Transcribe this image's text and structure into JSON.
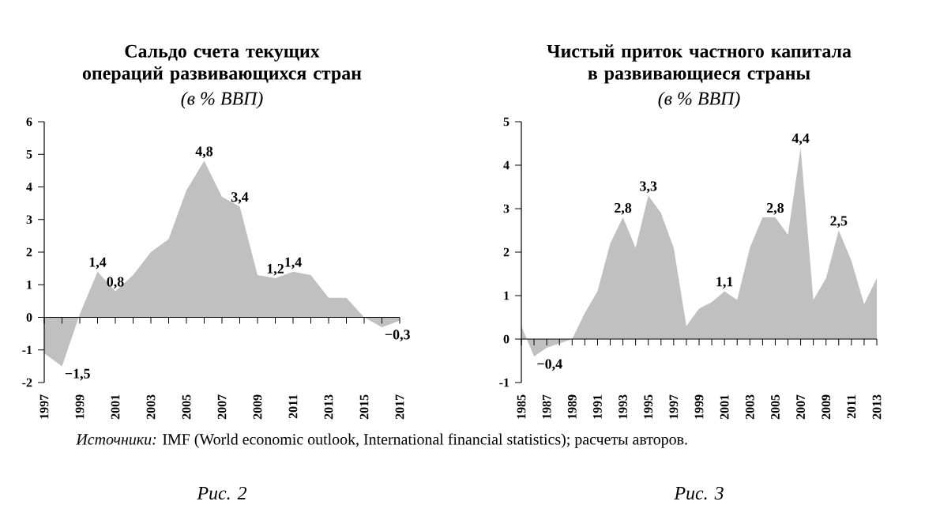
{
  "chart_data": [
    {
      "type": "area",
      "title": "Сальдо счета текущих операций развивающихся стран",
      "subtitle": "(в % ВВП)",
      "x": [
        1997,
        1998,
        1999,
        2000,
        2001,
        2002,
        2003,
        2004,
        2005,
        2006,
        2007,
        2008,
        2009,
        2010,
        2011,
        2012,
        2013,
        2014,
        2015,
        2016,
        2017
      ],
      "series": [
        {
          "color": "#c0c0c0",
          "values": [
            -1.1,
            -1.5,
            0.1,
            1.4,
            0.8,
            1.3,
            2.0,
            2.4,
            3.9,
            4.8,
            3.7,
            3.4,
            1.3,
            1.2,
            1.4,
            1.3,
            0.6,
            0.6,
            0.0,
            -0.3,
            -0.1
          ]
        }
      ],
      "xlim": [
        1997,
        2017
      ],
      "xticks": [
        1997,
        {
          "value": 1998,
          "label": null
        },
        1999,
        {
          "value": 2000,
          "label": null
        },
        2001,
        {
          "value": 2002,
          "label": null
        },
        2003,
        {
          "value": 2004,
          "label": null
        },
        2005,
        {
          "value": 2006,
          "label": null
        },
        2007,
        {
          "value": 2008,
          "label": null
        },
        2009,
        {
          "value": 2010,
          "label": null
        },
        2011,
        {
          "value": 2012,
          "label": null
        },
        2013,
        {
          "value": 2014,
          "label": null
        },
        2015,
        {
          "value": 2016,
          "label": null
        },
        2017
      ],
      "ylim": [
        -2,
        6
      ],
      "yticks": [
        -2,
        -1,
        0,
        1,
        2,
        3,
        4,
        5,
        6
      ],
      "annotations": [
        {
          "text": "1,4",
          "x": 2000,
          "y": 1.4
        },
        {
          "text": "0,8",
          "x": 2001,
          "y": 0.8
        },
        {
          "text": "4,8",
          "x": 2006,
          "y": 4.8
        },
        {
          "text": "3,4",
          "x": 2008,
          "y": 3.4
        },
        {
          "text": "1,2",
          "x": 2010,
          "y": 1.2
        },
        {
          "text": "1,4",
          "x": 2011,
          "y": 1.4
        },
        {
          "text": "−1,5",
          "x": 1998,
          "y": -1.5
        },
        {
          "text": "−0,3",
          "x": 2016,
          "y": -0.3
        },
        "*Источники:* IMF (World economic outlook, International financial statistics); расчеты авторов.",
        "*Рис. 2*"
      ]
    },
    {
      "type": "area",
      "title": "Чистый приток частного капитала в развивающиеся страны",
      "subtitle": "(в % ВВП)",
      "x": [
        1985,
        1986,
        1987,
        1988,
        1989,
        1990,
        1991,
        1992,
        1993,
        1994,
        1995,
        1996,
        1997,
        1998,
        1999,
        2000,
        2001,
        2002,
        2003,
        2004,
        2005,
        2006,
        2007,
        2008,
        2009,
        2010,
        2011,
        2012,
        2013
      ],
      "series": [
        {
          "color": "#c0c0c0",
          "values": [
            0.3,
            -0.4,
            -0.2,
            -0.1,
            0.0,
            0.6,
            1.1,
            2.2,
            2.8,
            2.1,
            3.3,
            2.9,
            2.1,
            0.3,
            0.7,
            0.85,
            1.1,
            0.9,
            2.1,
            2.8,
            2.8,
            2.4,
            4.4,
            0.9,
            1.4,
            2.5,
            1.8,
            0.8,
            1.4
          ]
        }
      ],
      "xlim": [
        1985,
        2013
      ],
      "xticks": [
        1985,
        {
          "value": 1986,
          "label": null
        },
        1987,
        {
          "value": 1988,
          "label": null
        },
        1989,
        {
          "value": 1990,
          "label": null
        },
        1991,
        {
          "value": 1992,
          "label": null
        },
        1993,
        {
          "value": 1994,
          "label": null
        },
        1995,
        {
          "value": 1996,
          "label": null
        },
        1997,
        {
          "value": 1998,
          "label": null
        },
        1999,
        {
          "value": 2000,
          "label": null
        },
        2001,
        {
          "value": 2002,
          "label": null
        },
        2003,
        {
          "value": 2004,
          "label": null
        },
        2005,
        {
          "value": 2006,
          "label": null
        },
        2007,
        {
          "value": 2008,
          "label": null
        },
        2009,
        {
          "value": 2010,
          "label": null
        },
        2011,
        {
          "value": 2012,
          "label": null
        },
        2013
      ],
      "ylim": [
        -1,
        5
      ],
      "yticks": [
        -1,
        0,
        1,
        2,
        3,
        4,
        5
      ],
      "annotations": [
        {
          "text": "−0,4",
          "x": 1986,
          "y": -0.4
        },
        {
          "text": "2,8",
          "x": 1993,
          "y": 2.8
        },
        {
          "text": "3,3",
          "x": 1995,
          "y": 3.3
        },
        {
          "text": "1,1",
          "x": 2001,
          "y": 1.1
        },
        {
          "text": "2,8",
          "x": 2005,
          "y": 2.8
        },
        {
          "text": "4,4",
          "x": 2007,
          "y": 4.4
        },
        {
          "text": "2,5",
          "x": 2010,
          "y": 2.5
        },
        "*Рис. 3*"
      ]
    }
  ]
}
